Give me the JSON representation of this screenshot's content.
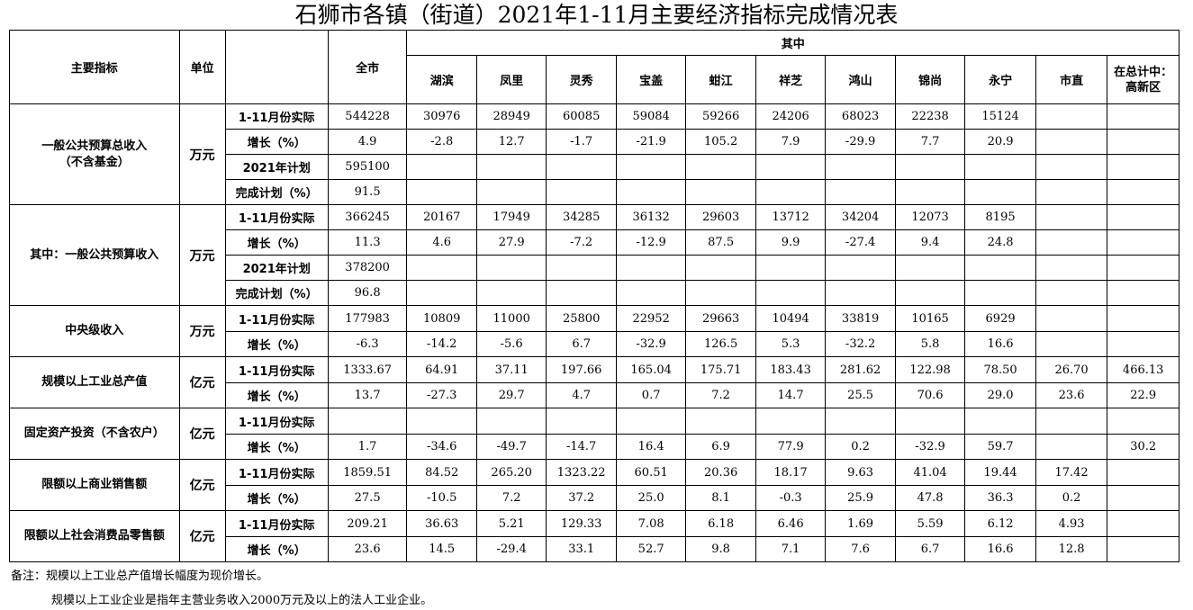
{
  "title": "石狮市各镇（街道）2021年1-11月主要经济指标完成情况表",
  "header": {
    "indicator": "主要指标",
    "unit": "单位",
    "city": "全市",
    "of_which": "其中",
    "columns": [
      "湖滨",
      "凤里",
      "灵秀",
      "宝盖",
      "蚶江",
      "祥芝",
      "鸿山",
      "锦尚",
      "永宁",
      "市直",
      "在总计中：高新区"
    ]
  },
  "sections": [
    {
      "name": "一般公共预算总收入（不含基金）",
      "unit": "万元",
      "rows": [
        {
          "label": "1-11月份实际",
          "values": [
            "544228",
            "30976",
            "28949",
            "60085",
            "59084",
            "59266",
            "24206",
            "68023",
            "22238",
            "15124",
            "",
            ""
          ]
        },
        {
          "label": "增长（%）",
          "values": [
            "4.9",
            "-2.8",
            "12.7",
            "-1.7",
            "-21.9",
            "105.2",
            "7.9",
            "-29.9",
            "7.7",
            "20.9",
            "",
            ""
          ]
        },
        {
          "label": "2021年计划",
          "values": [
            "595100",
            "",
            "",
            "",
            "",
            "",
            "",
            "",
            "",
            "",
            "",
            ""
          ]
        },
        {
          "label": "完成计划（%）",
          "values": [
            "91.5",
            "",
            "",
            "",
            "",
            "",
            "",
            "",
            "",
            "",
            "",
            ""
          ]
        }
      ]
    },
    {
      "name": "其中：一般公共预算收入",
      "unit": "万元",
      "rows": [
        {
          "label": "1-11月份实际",
          "values": [
            "366245",
            "20167",
            "17949",
            "34285",
            "36132",
            "29603",
            "13712",
            "34204",
            "12073",
            "8195",
            "",
            ""
          ]
        },
        {
          "label": "增长（%）",
          "values": [
            "11.3",
            "4.6",
            "27.9",
            "-7.2",
            "-12.9",
            "87.5",
            "9.9",
            "-27.4",
            "9.4",
            "24.8",
            "",
            ""
          ]
        },
        {
          "label": "2021年计划",
          "values": [
            "378200",
            "",
            "",
            "",
            "",
            "",
            "",
            "",
            "",
            "",
            "",
            ""
          ]
        },
        {
          "label": "完成计划（%）",
          "values": [
            "96.8",
            "",
            "",
            "",
            "",
            "",
            "",
            "",
            "",
            "",
            "",
            ""
          ]
        }
      ]
    },
    {
      "name": "中央级收入",
      "unit": "万元",
      "rows": [
        {
          "label": "1-11月份实际",
          "values": [
            "177983",
            "10809",
            "11000",
            "25800",
            "22952",
            "29663",
            "10494",
            "33819",
            "10165",
            "6929",
            "",
            ""
          ]
        },
        {
          "label": "增长（%）",
          "values": [
            "-6.3",
            "-14.2",
            "-5.6",
            "6.7",
            "-32.9",
            "126.5",
            "5.3",
            "-32.2",
            "5.8",
            "16.6",
            "",
            ""
          ]
        }
      ]
    },
    {
      "name": "规模以上工业总产值",
      "unit": "亿元",
      "rows": [
        {
          "label": "1-11月份实际",
          "values": [
            "1333.67",
            "64.91",
            "37.11",
            "197.66",
            "165.04",
            "175.71",
            "183.43",
            "281.62",
            "122.98",
            "78.50",
            "26.70",
            "466.13"
          ]
        },
        {
          "label": "增长（%）",
          "values": [
            "13.7",
            "-27.3",
            "29.7",
            "4.7",
            "0.7",
            "7.2",
            "14.7",
            "25.5",
            "70.6",
            "29.0",
            "23.6",
            "22.9"
          ]
        }
      ]
    },
    {
      "name": "固定资产投资（不含农户）",
      "unit": "亿元",
      "rows": [
        {
          "label": "1-11月份实际",
          "values": [
            "",
            "",
            "",
            "",
            "",
            "",
            "",
            "",
            "",
            "",
            "",
            ""
          ]
        },
        {
          "label": "增长（%）",
          "values": [
            "1.7",
            "-34.6",
            "-49.7",
            "-14.7",
            "16.4",
            "6.9",
            "77.9",
            "0.2",
            "-32.9",
            "59.7",
            "",
            "30.2"
          ]
        }
      ]
    },
    {
      "name": "限额以上商业销售额",
      "unit": "亿元",
      "rows": [
        {
          "label": "1-11月份实际",
          "values": [
            "1859.51",
            "84.52",
            "265.20",
            "1323.22",
            "60.51",
            "20.36",
            "18.17",
            "9.63",
            "41.04",
            "19.44",
            "17.42",
            ""
          ]
        },
        {
          "label": "增长（%）",
          "values": [
            "27.5",
            "-10.5",
            "7.2",
            "37.2",
            "25.0",
            "8.1",
            "-0.3",
            "25.9",
            "47.8",
            "36.3",
            "0.2",
            ""
          ]
        }
      ]
    },
    {
      "name": "限额以上社会消费品零售额",
      "unit": "亿元",
      "rows": [
        {
          "label": "1-11月份实际",
          "values": [
            "209.21",
            "36.63",
            "5.21",
            "129.33",
            "7.08",
            "6.18",
            "6.46",
            "1.69",
            "5.59",
            "6.12",
            "4.93",
            ""
          ]
        },
        {
          "label": "增长（%）",
          "values": [
            "23.6",
            "14.5",
            "-29.4",
            "33.1",
            "52.7",
            "9.8",
            "7.1",
            "7.6",
            "6.7",
            "16.6",
            "12.8",
            ""
          ]
        }
      ]
    }
  ],
  "notes": [
    "备注：规模以上工业总产值增长幅度为现价增长。",
    "规模以上工业企业是指年主营业务收入2000万元及以上的法人工业企业。"
  ]
}
